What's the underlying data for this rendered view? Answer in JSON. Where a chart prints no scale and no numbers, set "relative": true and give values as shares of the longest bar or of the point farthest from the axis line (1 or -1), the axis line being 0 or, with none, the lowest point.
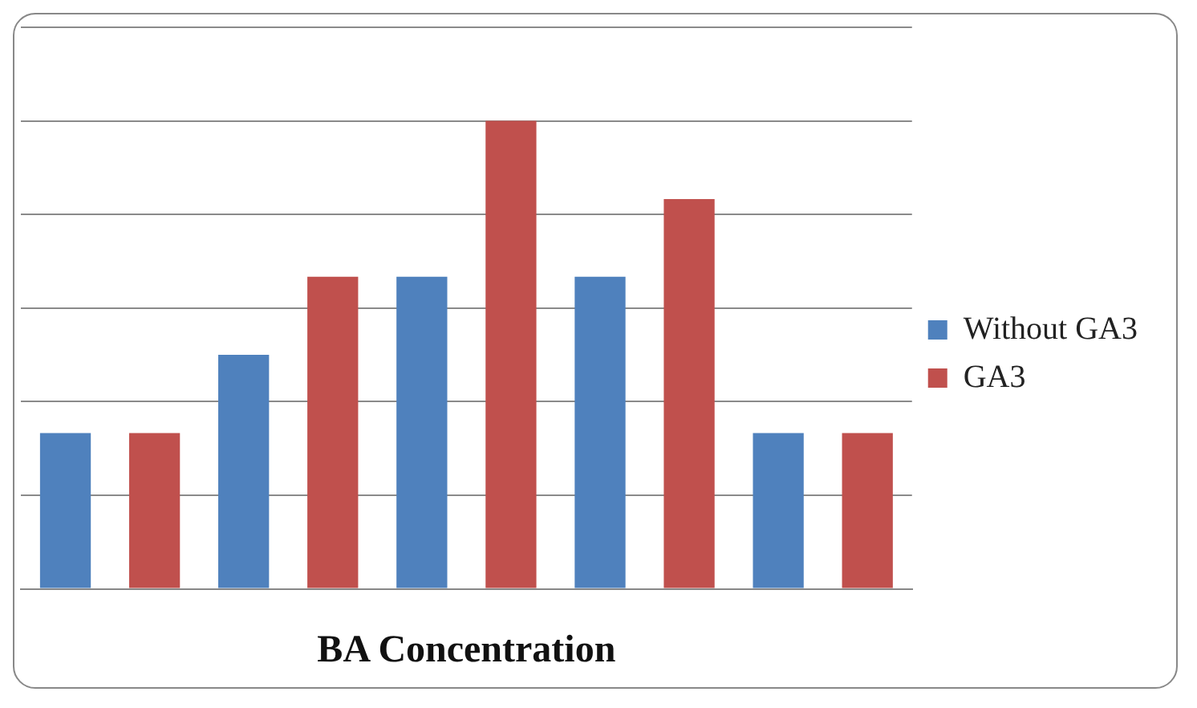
{
  "chart_data": {
    "type": "bar",
    "xlabel": "BA Concentration",
    "categories": [
      null,
      null,
      null,
      null,
      null
    ],
    "relative": true,
    "grid": "y",
    "legend": "right",
    "series": [
      {
        "name": "Without GA3",
        "color": "#4f81bd",
        "values": [
          0.333,
          0.5,
          0.667,
          0.667,
          0.333
        ]
      },
      {
        "name": "GA3",
        "color": "#c0504d",
        "values": [
          0.333,
          0.667,
          1,
          0.833,
          0.333
        ]
      }
    ]
  }
}
